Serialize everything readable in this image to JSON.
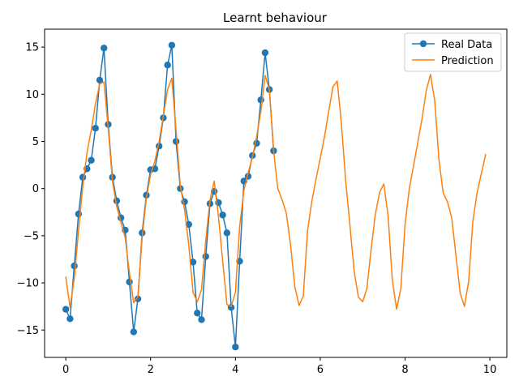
{
  "chart_data": {
    "type": "line",
    "title": "Learnt behaviour",
    "xlabel": "",
    "ylabel": "",
    "xlim": [
      -0.5,
      10.4
    ],
    "ylim": [
      -17.9,
      16.9
    ],
    "x_ticks": [
      0,
      2,
      4,
      6,
      8,
      10
    ],
    "y_ticks": [
      -15,
      -10,
      -5,
      0,
      5,
      10,
      15
    ],
    "grid": false,
    "legend": "top-right",
    "series": [
      {
        "name": "Real Data",
        "color": "#1f77b4",
        "marker": "circle",
        "x": [
          0.0,
          0.1,
          0.2,
          0.3,
          0.4,
          0.5,
          0.6,
          0.7,
          0.8,
          0.9,
          1.0,
          1.1,
          1.2,
          1.3,
          1.4,
          1.5,
          1.6,
          1.7,
          1.8,
          1.9,
          2.0,
          2.1,
          2.2,
          2.3,
          2.4,
          2.5,
          2.6,
          2.7,
          2.8,
          2.9,
          3.0,
          3.1,
          3.2,
          3.3,
          3.4,
          3.5,
          3.6,
          3.7,
          3.8,
          3.9,
          4.0,
          4.1,
          4.2,
          4.3,
          4.4,
          4.5,
          4.6,
          4.7,
          4.8,
          4.9
        ],
        "y": [
          -12.8,
          -13.8,
          -8.2,
          -2.7,
          1.2,
          2.1,
          3.0,
          6.4,
          11.5,
          14.9,
          6.8,
          1.2,
          -1.3,
          -3.1,
          -4.4,
          -9.9,
          -15.2,
          -11.7,
          -4.7,
          -0.7,
          2.0,
          2.1,
          4.5,
          7.5,
          13.1,
          15.2,
          5.0,
          0.0,
          -1.4,
          -3.8,
          -7.8,
          -13.2,
          -13.9,
          -7.2,
          -1.6,
          -0.3,
          -1.5,
          -2.8,
          -4.7,
          -12.6,
          -16.8,
          -7.7,
          0.8,
          1.3,
          3.5,
          4.8,
          9.4,
          14.4,
          10.5,
          4.0
        ]
      },
      {
        "name": "Prediction",
        "color": "#ff7f0e",
        "marker": "none",
        "x": [
          0.0,
          0.1,
          0.2,
          0.3,
          0.4,
          0.5,
          0.6,
          0.7,
          0.8,
          0.9,
          1.0,
          1.1,
          1.2,
          1.3,
          1.4,
          1.5,
          1.6,
          1.7,
          1.8,
          1.9,
          2.0,
          2.1,
          2.2,
          2.3,
          2.4,
          2.5,
          2.6,
          2.7,
          2.8,
          2.9,
          3.0,
          3.1,
          3.2,
          3.3,
          3.4,
          3.5,
          3.6,
          3.7,
          3.8,
          3.9,
          4.0,
          4.1,
          4.2,
          4.3,
          4.4,
          4.5,
          4.6,
          4.7,
          4.8,
          4.9,
          5.0,
          5.1,
          5.2,
          5.3,
          5.4,
          5.5,
          5.6,
          5.7,
          5.8,
          5.9,
          6.0,
          6.1,
          6.2,
          6.3,
          6.4,
          6.5,
          6.6,
          6.7,
          6.8,
          6.9,
          7.0,
          7.1,
          7.2,
          7.3,
          7.4,
          7.5,
          7.6,
          7.7,
          7.8,
          7.9,
          8.0,
          8.1,
          8.2,
          8.3,
          8.4,
          8.5,
          8.6,
          8.7,
          8.8,
          8.9,
          9.0,
          9.1,
          9.2,
          9.3,
          9.4,
          9.5,
          9.6,
          9.7,
          9.8,
          9.9
        ],
        "y": [
          -9.4,
          -12.6,
          -9.5,
          -4.5,
          0.2,
          3.8,
          6.2,
          9.0,
          11.1,
          11.3,
          6.4,
          0.8,
          -1.9,
          -3.6,
          -5.2,
          -8.9,
          -12.1,
          -11.5,
          -5.2,
          -1.0,
          1.5,
          2.9,
          5.0,
          7.7,
          10.5,
          11.7,
          6.2,
          0.3,
          -2.2,
          -6.0,
          -11.0,
          -12.0,
          -10.7,
          -5.5,
          -1.2,
          0.8,
          -3.0,
          -7.7,
          -12.3,
          -12.5,
          -11.0,
          -4.0,
          -0.2,
          1.7,
          3.3,
          5.5,
          8.2,
          12.0,
          10.5,
          4.0,
          0.0,
          -1.2,
          -2.6,
          -6.0,
          -10.4,
          -12.4,
          -11.4,
          -4.5,
          -1.4,
          1.0,
          3.2,
          5.5,
          8.2,
          10.8,
          11.4,
          6.8,
          0.8,
          -3.9,
          -8.8,
          -11.5,
          -12.0,
          -10.6,
          -6.4,
          -2.7,
          -0.4,
          0.5,
          -2.9,
          -9.7,
          -12.8,
          -10.6,
          -3.8,
          0.0,
          2.4,
          4.9,
          7.4,
          10.4,
          12.1,
          9.3,
          3.0,
          -0.5,
          -1.4,
          -3.1,
          -7.1,
          -11.1,
          -12.5,
          -9.8,
          -3.4,
          -0.4,
          1.6,
          3.6
        ]
      }
    ]
  }
}
